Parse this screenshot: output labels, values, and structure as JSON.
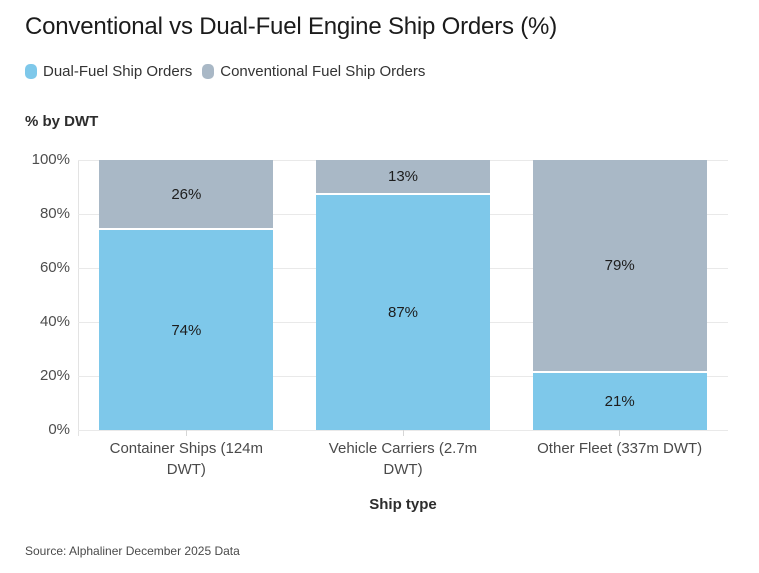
{
  "chart_data": {
    "type": "bar",
    "stacked": true,
    "title": "Conventional vs Dual-Fuel Engine Ship Orders (%)",
    "xlabel": "Ship type",
    "ylabel": "% by DWT",
    "categories": [
      "Container Ships (124m DWT)",
      "Vehicle Carriers (2.7m DWT)",
      "Other Fleet (337m DWT)"
    ],
    "series": [
      {
        "name": "Dual-Fuel Ship Orders",
        "color": "#7ec8ea",
        "values": [
          74,
          87,
          21
        ]
      },
      {
        "name": "Conventional Fuel Ship Orders",
        "color": "#a9b8c6",
        "values": [
          26,
          13,
          79
        ]
      }
    ],
    "value_suffix": "%",
    "ylim": [
      0,
      100
    ],
    "yticks": [
      0,
      20,
      40,
      60,
      80,
      100
    ],
    "grid": true,
    "legend_position": "top"
  },
  "footer": {
    "source": "Source: Alphaliner December 2025 Data"
  }
}
